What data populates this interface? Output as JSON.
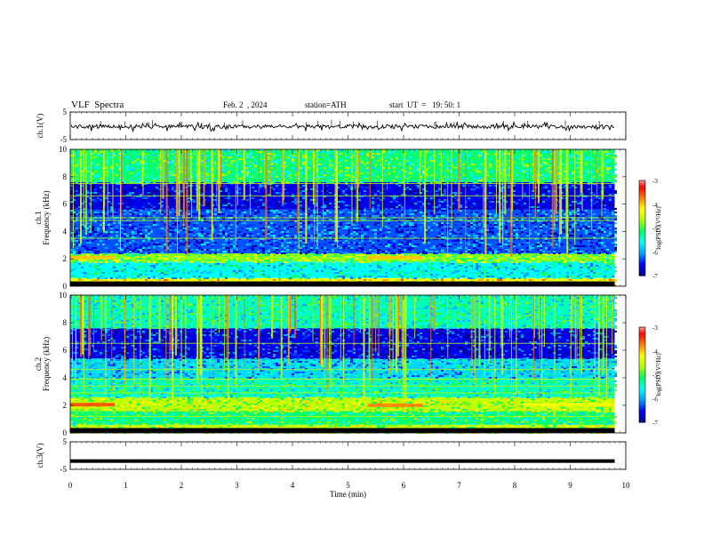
{
  "header": {
    "title": "VLF  Spectra",
    "date": "Feb. 2  , 2024",
    "station": "station=ATH",
    "start": "start  UT  =   19: 50: 1"
  },
  "colors": {
    "axis": "#000000",
    "trace": "#000000",
    "colormap": [
      "#000000",
      "#00008b",
      "#0000ff",
      "#00a0ff",
      "#00ffff",
      "#00ff60",
      "#b0ff00",
      "#ffff00",
      "#ff8000",
      "#ff0000",
      "#ffffff"
    ]
  },
  "chart_data": [
    {
      "type": "line",
      "panel": "ch1-waveform",
      "ylabel": "ch.1(V)",
      "ylim": [
        -5,
        5
      ],
      "yticks": [
        "5",
        "-5"
      ],
      "xlim": [
        0,
        10
      ],
      "trace": "fluctuating signal around about -0.3 V, spikes to about 1 V and -2 V"
    },
    {
      "type": "heatmap",
      "panel": "ch1-spectrogram",
      "ylabel": "ch.1\nFrequency  (kHz)",
      "ylim": [
        0,
        10
      ],
      "yticks": [
        "0",
        "2",
        "4",
        "6",
        "8",
        "10"
      ],
      "xlim": [
        0,
        9.8
      ],
      "colorbar": {
        "label": "log(PSD)(V²/Hz)",
        "range": [
          -7,
          -3
        ],
        "ticks": [
          "-3",
          "-4",
          "-5",
          "-6",
          "-7"
        ]
      },
      "bands_khz": [
        {
          "from": 0.0,
          "to": 0.6,
          "level": -4.2
        },
        {
          "from": 0.6,
          "to": 1.8,
          "level": -5.6
        },
        {
          "from": 1.8,
          "to": 2.4,
          "level": -4.8
        },
        {
          "from": 2.4,
          "to": 5.6,
          "level": -6.3
        },
        {
          "from": 5.6,
          "to": 7.6,
          "level": -6.6
        },
        {
          "from": 7.6,
          "to": 10.0,
          "level": -5.2
        }
      ],
      "lines_khz": [
        2.1,
        3.5,
        4.8,
        5.0,
        6.6,
        7.5
      ],
      "highlights": [
        {
          "t0": 0.0,
          "t1": 0.8,
          "khz": 2.1,
          "level": -4.0
        },
        {
          "t0": 5.35,
          "t1": 6.35,
          "khz": 2.1,
          "level": -4.0
        }
      ]
    },
    {
      "type": "heatmap",
      "panel": "ch2-spectrogram",
      "ylabel": "ch.2\nFrequency  (kHz)",
      "ylim": [
        0,
        10
      ],
      "yticks": [
        "0",
        "2",
        "4",
        "6",
        "8",
        "10"
      ],
      "xlim": [
        0,
        9.8
      ],
      "colorbar": {
        "label": "log(PSD)(V²/Hz)",
        "range": [
          -7,
          -3
        ],
        "ticks": [
          "-3",
          "-4",
          "-5",
          "-6",
          "-7"
        ]
      },
      "bands_khz": [
        {
          "from": 0.0,
          "to": 0.6,
          "level": -4.6
        },
        {
          "from": 0.6,
          "to": 1.6,
          "level": -5.2
        },
        {
          "from": 1.6,
          "to": 2.6,
          "level": -4.6
        },
        {
          "from": 2.6,
          "to": 4.0,
          "level": -5.4
        },
        {
          "from": 4.0,
          "to": 5.4,
          "level": -5.8
        },
        {
          "from": 5.4,
          "to": 7.6,
          "level": -6.6
        },
        {
          "from": 7.6,
          "to": 10.0,
          "level": -5.4
        }
      ],
      "lines_khz": [
        1.2,
        1.6,
        2.9,
        3.4,
        3.9,
        4.6,
        6.5
      ],
      "highlights": [
        {
          "t0": 0.0,
          "t1": 0.8,
          "khz": 2.05,
          "level": -3.6
        },
        {
          "t0": 5.35,
          "t1": 6.35,
          "khz": 2.0,
          "level": -3.8
        },
        {
          "t0": 8.15,
          "t1": 9.8,
          "khz": 2.05,
          "level": -4.3
        }
      ]
    },
    {
      "type": "line",
      "panel": "ch3-waveform",
      "ylabel": "ch.3(V)",
      "ylim": [
        -5,
        5
      ],
      "yticks": [
        "5",
        "-5"
      ],
      "xlim": [
        0,
        10
      ],
      "xlabel": "Time  (min)",
      "xticks": [
        "0",
        "1",
        "2",
        "3",
        "4",
        "5",
        "6",
        "7",
        "8",
        "9",
        "10"
      ],
      "trace": "flat thick line at about -2 V"
    }
  ]
}
